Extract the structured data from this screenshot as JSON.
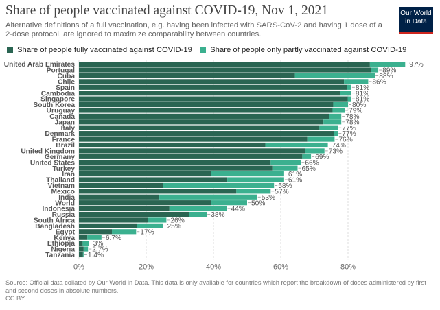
{
  "header": {
    "title": "Share of people vaccinated against COVID-19, Nov 1, 2021",
    "subtitle": "Alternative definitions of a full vaccination, e.g. having been infected with SARS-CoV-2 and having 1 dose of a 2-dose protocol, are ignored to maximize comparability between countries.",
    "logo_line1": "Our World",
    "logo_line2": "in Data"
  },
  "legend": {
    "full_label": "Share of people fully vaccinated against COVID-19",
    "partial_label": "Share of people only partly vaccinated against COVID-19"
  },
  "colors": {
    "full": "#2a6552",
    "partial": "#3bb08f",
    "gridline": "#dddddd",
    "logo_bg": "#002147",
    "logo_accent": "#ce261e"
  },
  "footer": {
    "source": "Source: Official data collated by Our World in Data. This data is only available for countries which report the breakdown of doses administered by first and second doses in absolute numbers.",
    "license": "CC BY"
  },
  "chart_data": {
    "type": "bar",
    "orientation": "horizontal",
    "stacked": true,
    "title": "Share of people vaccinated against COVID-19, Nov 1, 2021",
    "x_ticks": [
      "0%",
      "20%",
      "40%",
      "60%",
      "80%"
    ],
    "x_tick_values": [
      0,
      20,
      40,
      60,
      80
    ],
    "xlim": [
      0,
      100
    ],
    "grid": true,
    "legend_position": "top",
    "categories": [
      "United Arab Emirates",
      "Portugal",
      "Cuba",
      "Chile",
      "Spain",
      "Cambodia",
      "Singapore",
      "South Korea",
      "Uruguay",
      "Canada",
      "Japan",
      "Italy",
      "Denmark",
      "France",
      "Brazil",
      "United Kingdom",
      "Germany",
      "United States",
      "Turkey",
      "Iran",
      "Thailand",
      "Vietnam",
      "Mexico",
      "India",
      "World",
      "Indonesia",
      "Russia",
      "South Africa",
      "Bangladesh",
      "Egypt",
      "Kenya",
      "Ethiopia",
      "Nigeria",
      "Tanzania"
    ],
    "series": [
      {
        "name": "Share of people fully vaccinated against COVID-19",
        "values": [
          86.5,
          86.8,
          64.2,
          78.8,
          79.8,
          77.6,
          79.9,
          75.6,
          75.4,
          74.4,
          72.7,
          71.5,
          75.8,
          67.9,
          55.4,
          67.2,
          66.4,
          57.0,
          57.5,
          39.2,
          44.1,
          25.0,
          46.8,
          23.9,
          39.3,
          26.9,
          32.8,
          20.5,
          17.2,
          9.8,
          2.5,
          1.1,
          1.4,
          1.2
        ],
        "labels": [
          "",
          "",
          "",
          "",
          "",
          "",
          "",
          "",
          "",
          "",
          "",
          "",
          "",
          "",
          "",
          "",
          "",
          "",
          "",
          "",
          "",
          "",
          "",
          "",
          "",
          "",
          "",
          "",
          "",
          "",
          "",
          "",
          "",
          ""
        ]
      },
      {
        "name": "Share of people only partly vaccinated against COVID-19",
        "values": [
          10.5,
          2.2,
          23.8,
          7.2,
          1.2,
          3.4,
          1.1,
          4.4,
          3.6,
          3.6,
          5.3,
          5.5,
          1.2,
          8.1,
          18.6,
          5.8,
          2.6,
          9.0,
          7.5,
          21.8,
          16.9,
          33.0,
          10.2,
          29.1,
          10.7,
          17.1,
          5.2,
          5.5,
          7.8,
          7.2,
          4.2,
          1.9,
          1.3,
          0.2
        ]
      }
    ],
    "totals": [
      "97%",
      "89%",
      "88%",
      "86%",
      "81%",
      "81%",
      "81%",
      "80%",
      "79%",
      "78%",
      "78%",
      "77%",
      "77%",
      "76%",
      "74%",
      "73%",
      "69%",
      "66%",
      "65%",
      "61%",
      "61%",
      "58%",
      "57%",
      "53%",
      "50%",
      "44%",
      "38%",
      "26%",
      "25%",
      "17%",
      "6.7%",
      "3%",
      "2.7%",
      "1.4%"
    ]
  }
}
